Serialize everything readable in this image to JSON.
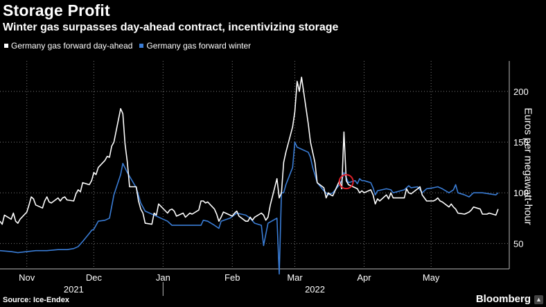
{
  "title": "Storage Profit",
  "subtitle": "Winter gas surpasses day-ahead contract, incentivizing storage",
  "source": "Source: Ice-Endex",
  "brand": "Bloomberg",
  "colors": {
    "background": "#000000",
    "series_dayahead": "#ffffff",
    "series_winter": "#3a7dd6",
    "grid": "#7a7a7a",
    "highlight_circle": "#e0202a"
  },
  "chart_data": {
    "type": "line",
    "xlabel": "",
    "ylabel": "Euros per megawatt-hour",
    "ylim": [
      25,
      230
    ],
    "yticks": [
      50,
      100,
      150,
      200
    ],
    "x_range": [
      "2021-10-20",
      "2022-06-05"
    ],
    "month_ticks": [
      {
        "date": "2021-11-01",
        "label": "Nov"
      },
      {
        "date": "2021-12-01",
        "label": "Dec"
      },
      {
        "date": "2022-01-01",
        "label": "Jan"
      },
      {
        "date": "2022-02-01",
        "label": "Feb"
      },
      {
        "date": "2022-03-01",
        "label": "Mar"
      },
      {
        "date": "2022-04-01",
        "label": "Apr"
      },
      {
        "date": "2022-05-01",
        "label": "May"
      }
    ],
    "year_labels": [
      {
        "date": "2021-11-22",
        "label": "2021"
      },
      {
        "date": "2022-03-10",
        "label": "2022"
      }
    ],
    "year_divider": "2022-01-01",
    "grid": true,
    "legend_position": "top-left",
    "highlight": {
      "date": "2022-03-24",
      "value": 111,
      "shape": "circle"
    },
    "series": [
      {
        "name": "Germany gas forward day-ahead",
        "color": "#ffffff",
        "points": [
          [
            "2021-10-20",
            72
          ],
          [
            "2021-10-21",
            69
          ],
          [
            "2021-10-22",
            78
          ],
          [
            "2021-10-25",
            74
          ],
          [
            "2021-10-26",
            80
          ],
          [
            "2021-10-27",
            72
          ],
          [
            "2021-10-28",
            70
          ],
          [
            "2021-10-29",
            74
          ],
          [
            "2021-11-01",
            81
          ],
          [
            "2021-11-02",
            88
          ],
          [
            "2021-11-03",
            96
          ],
          [
            "2021-11-04",
            94
          ],
          [
            "2021-11-05",
            88
          ],
          [
            "2021-11-08",
            85
          ],
          [
            "2021-11-09",
            92
          ],
          [
            "2021-11-10",
            96
          ],
          [
            "2021-11-11",
            91
          ],
          [
            "2021-11-12",
            90
          ],
          [
            "2021-11-15",
            95
          ],
          [
            "2021-11-16",
            92
          ],
          [
            "2021-11-17",
            95
          ],
          [
            "2021-11-18",
            96
          ],
          [
            "2021-11-19",
            93
          ],
          [
            "2021-11-22",
            92
          ],
          [
            "2021-11-23",
            99
          ],
          [
            "2021-11-24",
            103
          ],
          [
            "2021-11-25",
            101
          ],
          [
            "2021-11-26",
            110
          ],
          [
            "2021-11-29",
            108
          ],
          [
            "2021-11-30",
            112
          ],
          [
            "2021-12-01",
            120
          ],
          [
            "2021-12-02",
            118
          ],
          [
            "2021-12-03",
            125
          ],
          [
            "2021-12-06",
            132
          ],
          [
            "2021-12-07",
            136
          ],
          [
            "2021-12-08",
            135
          ],
          [
            "2021-12-09",
            146
          ],
          [
            "2021-12-10",
            150
          ],
          [
            "2021-12-13",
            183
          ],
          [
            "2021-12-14",
            178
          ],
          [
            "2021-12-15",
            148
          ],
          [
            "2021-12-16",
            130
          ],
          [
            "2021-12-17",
            106
          ],
          [
            "2021-12-20",
            106
          ],
          [
            "2021-12-21",
            92
          ],
          [
            "2021-12-22",
            84
          ],
          [
            "2021-12-23",
            80
          ],
          [
            "2021-12-24",
            70
          ],
          [
            "2021-12-27",
            69
          ],
          [
            "2021-12-28",
            80
          ],
          [
            "2021-12-29",
            78
          ],
          [
            "2021-12-30",
            89
          ],
          [
            "2022-01-03",
            80
          ],
          [
            "2022-01-04",
            83
          ],
          [
            "2022-01-05",
            84
          ],
          [
            "2022-01-06",
            82
          ],
          [
            "2022-01-07",
            77
          ],
          [
            "2022-01-10",
            80
          ],
          [
            "2022-01-11",
            76
          ],
          [
            "2022-01-12",
            78
          ],
          [
            "2022-01-13",
            80
          ],
          [
            "2022-01-14",
            79
          ],
          [
            "2022-01-17",
            83
          ],
          [
            "2022-01-18",
            92
          ],
          [
            "2022-01-19",
            92
          ],
          [
            "2022-01-20",
            90
          ],
          [
            "2022-01-21",
            91
          ],
          [
            "2022-01-24",
            84
          ],
          [
            "2022-01-25",
            79
          ],
          [
            "2022-01-26",
            72
          ],
          [
            "2022-01-27",
            76
          ],
          [
            "2022-01-28",
            81
          ],
          [
            "2022-01-31",
            78
          ],
          [
            "2022-02-01",
            77
          ],
          [
            "2022-02-02",
            80
          ],
          [
            "2022-02-03",
            82
          ],
          [
            "2022-02-04",
            77
          ],
          [
            "2022-02-07",
            72
          ],
          [
            "2022-02-08",
            72
          ],
          [
            "2022-02-09",
            76
          ],
          [
            "2022-02-10",
            73
          ],
          [
            "2022-02-11",
            76
          ],
          [
            "2022-02-14",
            80
          ],
          [
            "2022-02-15",
            78
          ],
          [
            "2022-02-16",
            73
          ],
          [
            "2022-02-17",
            76
          ],
          [
            "2022-02-18",
            88
          ],
          [
            "2022-02-21",
            114
          ],
          [
            "2022-02-22",
            95
          ],
          [
            "2022-02-23",
            100
          ],
          [
            "2022-02-24",
            130
          ],
          [
            "2022-02-25",
            140
          ],
          [
            "2022-02-28",
            165
          ],
          [
            "2022-03-01",
            180
          ],
          [
            "2022-03-02",
            210
          ],
          [
            "2022-03-03",
            200
          ],
          [
            "2022-03-04",
            214
          ],
          [
            "2022-03-07",
            168
          ],
          [
            "2022-03-08",
            150
          ],
          [
            "2022-03-09",
            140
          ],
          [
            "2022-03-10",
            130
          ],
          [
            "2022-03-11",
            110
          ],
          [
            "2022-03-14",
            105
          ],
          [
            "2022-03-15",
            95
          ],
          [
            "2022-03-16",
            100
          ],
          [
            "2022-03-17",
            98
          ],
          [
            "2022-03-18",
            97
          ],
          [
            "2022-03-21",
            112
          ],
          [
            "2022-03-22",
            104
          ],
          [
            "2022-03-23",
            160
          ],
          [
            "2022-03-24",
            112
          ],
          [
            "2022-03-25",
            108
          ],
          [
            "2022-03-28",
            105
          ],
          [
            "2022-03-29",
            104
          ],
          [
            "2022-03-30",
            100
          ],
          [
            "2022-03-31",
            102
          ],
          [
            "2022-04-01",
            100
          ],
          [
            "2022-04-04",
            103
          ],
          [
            "2022-04-05",
            98
          ],
          [
            "2022-04-06",
            89
          ],
          [
            "2022-04-07",
            94
          ],
          [
            "2022-04-08",
            92
          ],
          [
            "2022-04-11",
            98
          ],
          [
            "2022-04-12",
            94
          ],
          [
            "2022-04-13",
            100
          ],
          [
            "2022-04-14",
            95
          ],
          [
            "2022-04-19",
            95
          ],
          [
            "2022-04-20",
            104
          ],
          [
            "2022-04-21",
            100
          ],
          [
            "2022-04-22",
            99
          ],
          [
            "2022-04-25",
            104
          ],
          [
            "2022-04-26",
            106
          ],
          [
            "2022-04-27",
            98
          ],
          [
            "2022-04-28",
            95
          ],
          [
            "2022-04-29",
            92
          ],
          [
            "2022-05-02",
            92
          ],
          [
            "2022-05-03",
            93
          ],
          [
            "2022-05-04",
            95
          ],
          [
            "2022-05-05",
            92
          ],
          [
            "2022-05-06",
            91
          ],
          [
            "2022-05-09",
            86
          ],
          [
            "2022-05-10",
            89
          ],
          [
            "2022-05-11",
            86
          ],
          [
            "2022-05-12",
            84
          ],
          [
            "2022-05-13",
            80
          ],
          [
            "2022-05-16",
            79
          ],
          [
            "2022-05-17",
            80
          ],
          [
            "2022-05-18",
            81
          ],
          [
            "2022-05-19",
            83
          ],
          [
            "2022-05-20",
            86
          ],
          [
            "2022-05-23",
            84
          ],
          [
            "2022-05-24",
            79
          ],
          [
            "2022-05-25",
            79
          ],
          [
            "2022-05-26",
            79
          ],
          [
            "2022-05-27",
            80
          ],
          [
            "2022-05-30",
            78
          ],
          [
            "2022-05-31",
            84
          ]
        ]
      },
      {
        "name": "Germany gas forward winter",
        "color": "#3a7dd6",
        "points": [
          [
            "2021-10-20",
            43
          ],
          [
            "2021-10-25",
            42
          ],
          [
            "2021-10-28",
            41
          ],
          [
            "2021-11-01",
            42
          ],
          [
            "2021-11-05",
            43
          ],
          [
            "2021-11-10",
            43
          ],
          [
            "2021-11-15",
            44
          ],
          [
            "2021-11-19",
            44
          ],
          [
            "2021-11-22",
            45
          ],
          [
            "2021-11-24",
            47
          ],
          [
            "2021-11-26",
            52
          ],
          [
            "2021-11-29",
            60
          ],
          [
            "2021-11-30",
            63
          ],
          [
            "2021-12-01",
            64
          ],
          [
            "2021-12-03",
            72
          ],
          [
            "2021-12-06",
            73
          ],
          [
            "2021-12-08",
            75
          ],
          [
            "2021-12-10",
            98
          ],
          [
            "2021-12-13",
            118
          ],
          [
            "2021-12-14",
            129
          ],
          [
            "2021-12-16",
            120
          ],
          [
            "2021-12-20",
            105
          ],
          [
            "2021-12-22",
            90
          ],
          [
            "2021-12-24",
            82
          ],
          [
            "2021-12-28",
            78
          ],
          [
            "2021-12-31",
            75
          ],
          [
            "2022-01-03",
            72
          ],
          [
            "2022-01-05",
            68
          ],
          [
            "2022-01-10",
            68
          ],
          [
            "2022-01-14",
            68
          ],
          [
            "2022-01-18",
            68
          ],
          [
            "2022-01-19",
            73
          ],
          [
            "2022-01-21",
            72
          ],
          [
            "2022-01-24",
            68
          ],
          [
            "2022-01-26",
            65
          ],
          [
            "2022-01-27",
            72
          ],
          [
            "2022-01-31",
            75
          ],
          [
            "2022-02-03",
            80
          ],
          [
            "2022-02-07",
            78
          ],
          [
            "2022-02-09",
            75
          ],
          [
            "2022-02-11",
            70
          ],
          [
            "2022-02-14",
            68
          ],
          [
            "2022-02-15",
            48
          ],
          [
            "2022-02-17",
            70
          ],
          [
            "2022-02-21",
            75
          ],
          [
            "2022-02-22",
            20
          ],
          [
            "2022-02-23",
            100
          ],
          [
            "2022-02-24",
            100
          ],
          [
            "2022-02-25",
            108
          ],
          [
            "2022-02-28",
            125
          ],
          [
            "2022-03-01",
            150
          ],
          [
            "2022-03-02",
            145
          ],
          [
            "2022-03-07",
            140
          ],
          [
            "2022-03-08",
            135
          ],
          [
            "2022-03-09",
            125
          ],
          [
            "2022-03-10",
            118
          ],
          [
            "2022-03-11",
            110
          ],
          [
            "2022-03-14",
            102
          ],
          [
            "2022-03-16",
            98
          ],
          [
            "2022-03-18",
            100
          ],
          [
            "2022-03-21",
            108
          ],
          [
            "2022-03-22",
            112
          ],
          [
            "2022-03-23",
            120
          ],
          [
            "2022-03-24",
            115
          ],
          [
            "2022-03-25",
            110
          ],
          [
            "2022-03-28",
            112
          ],
          [
            "2022-03-29",
            109
          ],
          [
            "2022-03-30",
            114
          ],
          [
            "2022-03-31",
            112
          ],
          [
            "2022-04-01",
            112
          ],
          [
            "2022-04-04",
            110
          ],
          [
            "2022-04-05",
            105
          ],
          [
            "2022-04-06",
            98
          ],
          [
            "2022-04-07",
            102
          ],
          [
            "2022-04-11",
            104
          ],
          [
            "2022-04-13",
            103
          ],
          [
            "2022-04-14",
            100
          ],
          [
            "2022-04-19",
            103
          ],
          [
            "2022-04-21",
            107
          ],
          [
            "2022-04-22",
            105
          ],
          [
            "2022-04-25",
            106
          ],
          [
            "2022-04-27",
            100
          ],
          [
            "2022-04-29",
            104
          ],
          [
            "2022-05-02",
            105
          ],
          [
            "2022-05-04",
            106
          ],
          [
            "2022-05-06",
            104
          ],
          [
            "2022-05-09",
            100
          ],
          [
            "2022-05-11",
            103
          ],
          [
            "2022-05-12",
            108
          ],
          [
            "2022-05-13",
            100
          ],
          [
            "2022-05-16",
            98
          ],
          [
            "2022-05-18",
            96
          ],
          [
            "2022-05-20",
            100
          ],
          [
            "2022-05-24",
            100
          ],
          [
            "2022-05-27",
            99
          ],
          [
            "2022-05-30",
            98
          ],
          [
            "2022-05-31",
            100
          ]
        ]
      }
    ]
  }
}
